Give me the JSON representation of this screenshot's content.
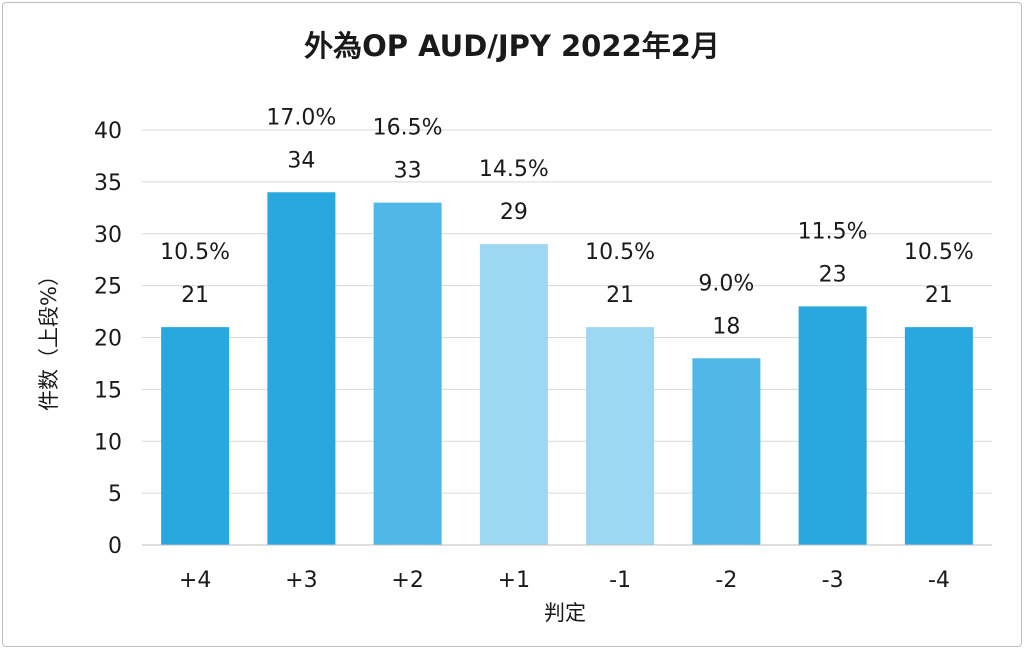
{
  "chart_data": {
    "type": "bar",
    "title": "外為OP AUD/JPY 2022年2月",
    "xlabel": "判定",
    "ylabel": "件数（上段%）",
    "categories": [
      "+4",
      "+3",
      "+2",
      "+1",
      "-1",
      "-2",
      "-3",
      "-4"
    ],
    "values": [
      21,
      34,
      33,
      29,
      21,
      18,
      23,
      21
    ],
    "percent_labels": [
      "10.5%",
      "17.0%",
      "16.5%",
      "14.5%",
      "10.5%",
      "9.0%",
      "11.5%",
      "10.5%"
    ],
    "bar_colors": [
      "#29a8e0",
      "#29a8e0",
      "#4fb8e6",
      "#9dd8f3",
      "#9dd8f3",
      "#4fb8e6",
      "#29a8e0",
      "#29a8e0"
    ],
    "ylim": [
      0,
      40
    ],
    "yticks": [
      0,
      5,
      10,
      15,
      20,
      25,
      30,
      35,
      40
    ],
    "grid": true,
    "legend": "none"
  }
}
